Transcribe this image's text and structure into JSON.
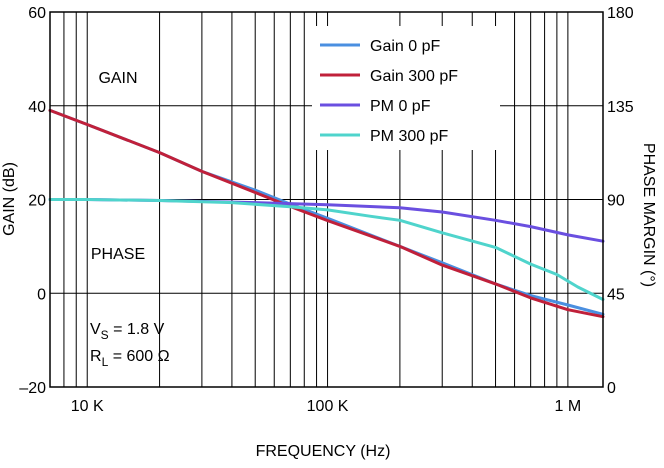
{
  "chart_data": {
    "type": "line",
    "title": "",
    "xlabel": "FREQUENCY (Hz)",
    "ylabel": "GAIN (dB)",
    "y2label": "PHASE MARGIN (°)",
    "x_scale": "log",
    "xlim": [
      7000,
      1400000
    ],
    "ylim": [
      -20,
      60
    ],
    "y2lim": [
      0,
      180
    ],
    "grid": true,
    "legend_position": "top-right",
    "x_ticks": [
      {
        "value": 10000,
        "label": "10 K"
      },
      {
        "value": 100000,
        "label": "100 K"
      },
      {
        "value": 1000000,
        "label": "1 M"
      }
    ],
    "y_ticks": [
      {
        "value": 60,
        "label": "60"
      },
      {
        "value": 40,
        "label": "40"
      },
      {
        "value": 20,
        "label": "20"
      },
      {
        "value": 0,
        "label": "0"
      },
      {
        "value": -20,
        "label": "–20"
      }
    ],
    "y2_ticks": [
      {
        "value": 180,
        "label": "180"
      },
      {
        "value": 135,
        "label": "135"
      },
      {
        "value": 90,
        "label": "90"
      },
      {
        "value": 45,
        "label": "45"
      },
      {
        "value": 0,
        "label": "0"
      }
    ],
    "annotations": [
      {
        "text": "GAIN"
      },
      {
        "text": "PHASE"
      }
    ],
    "conditions": {
      "vs_main": "V",
      "vs_sub": "S",
      "vs_value": " = 1.8 V",
      "rl_main": "R",
      "rl_sub": "L",
      "rl_value": " = 600 Ω"
    },
    "series": [
      {
        "name": "Gain 0 pF",
        "axis": "left",
        "color": "#4a8fe0",
        "x": [
          7000,
          10000,
          20000,
          30000,
          50000,
          70000,
          100000,
          200000,
          300000,
          500000,
          700000,
          1000000,
          1400000
        ],
        "y": [
          39,
          36,
          30,
          26,
          22,
          19,
          16,
          10,
          6.5,
          2,
          -0.5,
          -2.5,
          -4.5
        ]
      },
      {
        "name": "Gain 300 pF",
        "axis": "left",
        "color": "#c0203a",
        "x": [
          7000,
          10000,
          20000,
          30000,
          50000,
          70000,
          100000,
          200000,
          300000,
          500000,
          700000,
          1000000,
          1400000
        ],
        "y": [
          39,
          36,
          30,
          26,
          21.5,
          18.5,
          15.5,
          10,
          6,
          2,
          -1,
          -3.5,
          -5
        ]
      },
      {
        "name": "PM 0 pF",
        "axis": "right",
        "color": "#6a4fe0",
        "x": [
          7000,
          10000,
          20000,
          50000,
          100000,
          200000,
          300000,
          500000,
          700000,
          1000000,
          1400000
        ],
        "y": [
          90,
          90,
          89.5,
          88.5,
          87.5,
          86,
          84,
          80,
          77,
          73,
          70
        ]
      },
      {
        "name": "PM 300 pF",
        "axis": "right",
        "color": "#4fd4cc",
        "x": [
          7000,
          10000,
          20000,
          40000,
          70000,
          100000,
          150000,
          200000,
          300000,
          500000,
          700000,
          900000,
          1100000,
          1400000
        ],
        "y": [
          90,
          90,
          89.5,
          88.5,
          86.5,
          85,
          82,
          80,
          74,
          67,
          59,
          54,
          48,
          42
        ]
      }
    ]
  }
}
